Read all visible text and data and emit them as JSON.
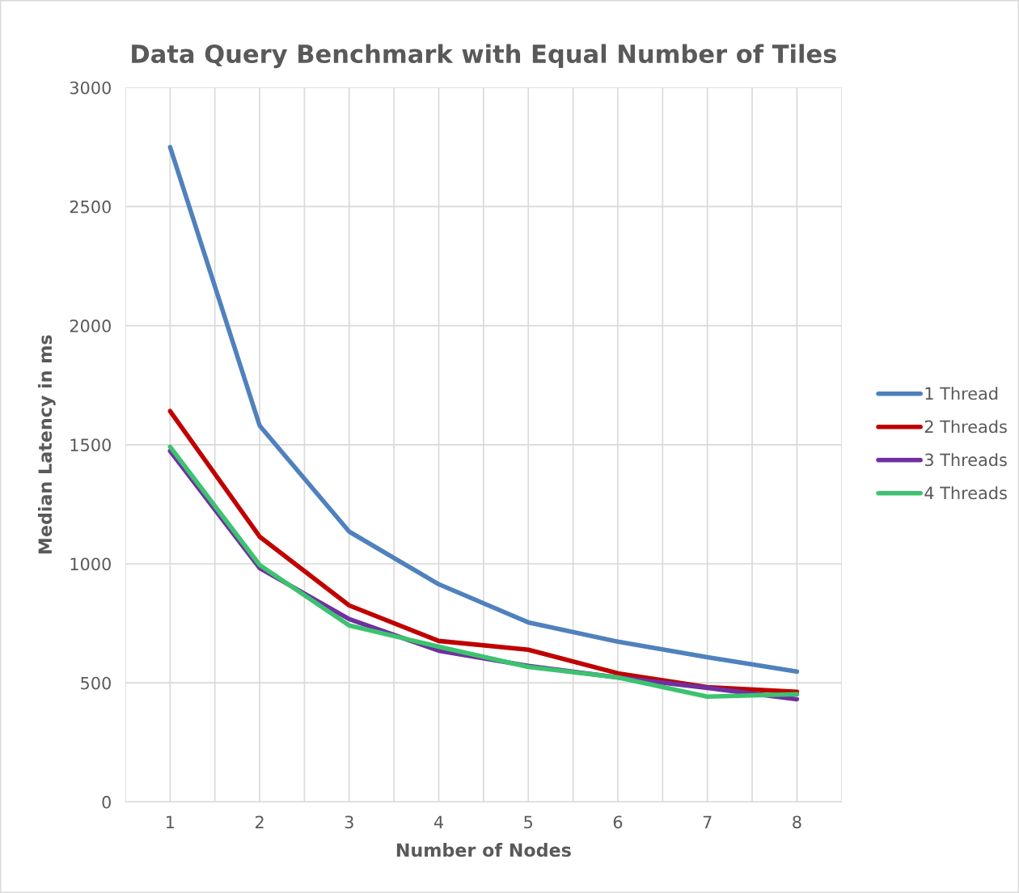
{
  "chart_data": {
    "type": "line",
    "title": "Data Query Benchmark with Equal Number of Tiles",
    "xlabel": "Number of Nodes",
    "ylabel": "Median Latency in ms",
    "categories": [
      "1",
      "2",
      "3",
      "4",
      "5",
      "6",
      "7",
      "8"
    ],
    "series": [
      {
        "name": "1 Thread",
        "color": "#4f81bd",
        "values": [
          2750,
          1580,
          1135,
          914,
          754,
          673,
          608,
          547
        ]
      },
      {
        "name": "2 Threads",
        "color": "#c00000",
        "values": [
          1641,
          1114,
          825,
          676,
          639,
          540,
          482,
          462
        ]
      },
      {
        "name": "3 Threads",
        "color": "#7030a0",
        "values": [
          1474,
          982,
          768,
          635,
          571,
          523,
          479,
          431
        ]
      },
      {
        "name": "4 Threads",
        "color": "#3cc36f",
        "values": [
          1491,
          995,
          741,
          652,
          567,
          523,
          442,
          452
        ]
      }
    ],
    "ylim": [
      0,
      3000
    ],
    "yticks": [
      0,
      500,
      1000,
      1500,
      2000,
      2500,
      3000
    ],
    "grid": true,
    "legend": "right",
    "marker": "none",
    "line_style": "solid"
  }
}
